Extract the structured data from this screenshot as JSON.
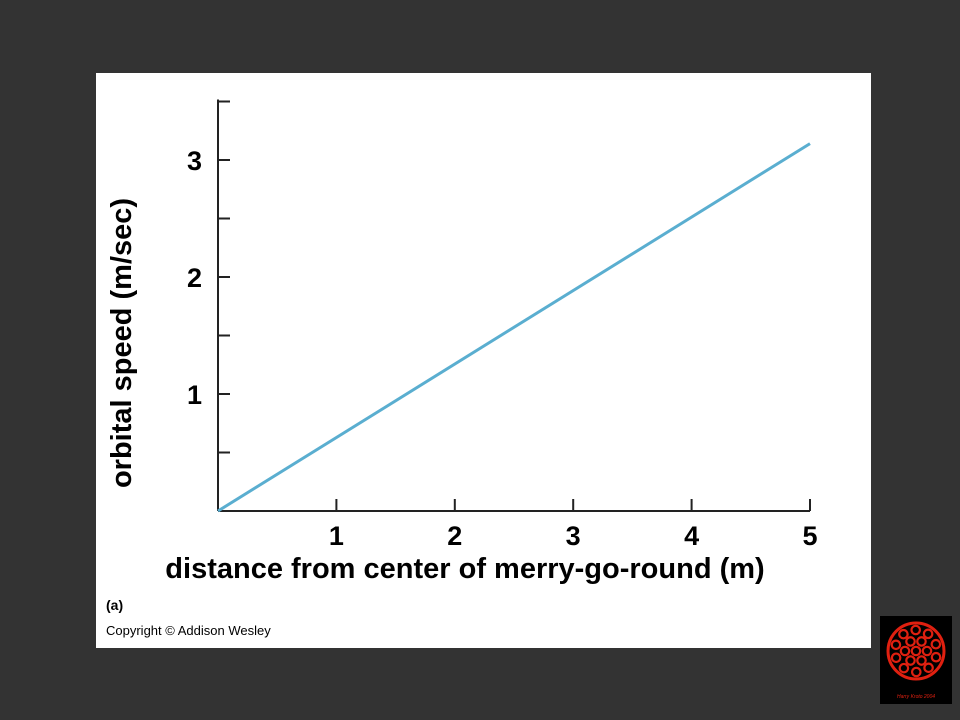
{
  "chart_data": {
    "type": "line",
    "title": "",
    "xlabel": "distance from center of merry-go-round (m)",
    "ylabel": "orbital speed (m/sec)",
    "xlim": [
      0,
      5
    ],
    "ylim": [
      0,
      3.5
    ],
    "xticks": [
      "1",
      "2",
      "3",
      "4",
      "5"
    ],
    "yticks": [
      "1",
      "2",
      "3"
    ],
    "x": [
      0,
      5
    ],
    "y": [
      0,
      3.14
    ],
    "line_color": "#5aaed0",
    "grid": false
  },
  "panel_label": "(a)",
  "copyright": "Copyright © Addison Wesley",
  "logo": {
    "text": "Harry Kroto 2004",
    "icon": "buckyball-icon",
    "color": "#e02010"
  }
}
